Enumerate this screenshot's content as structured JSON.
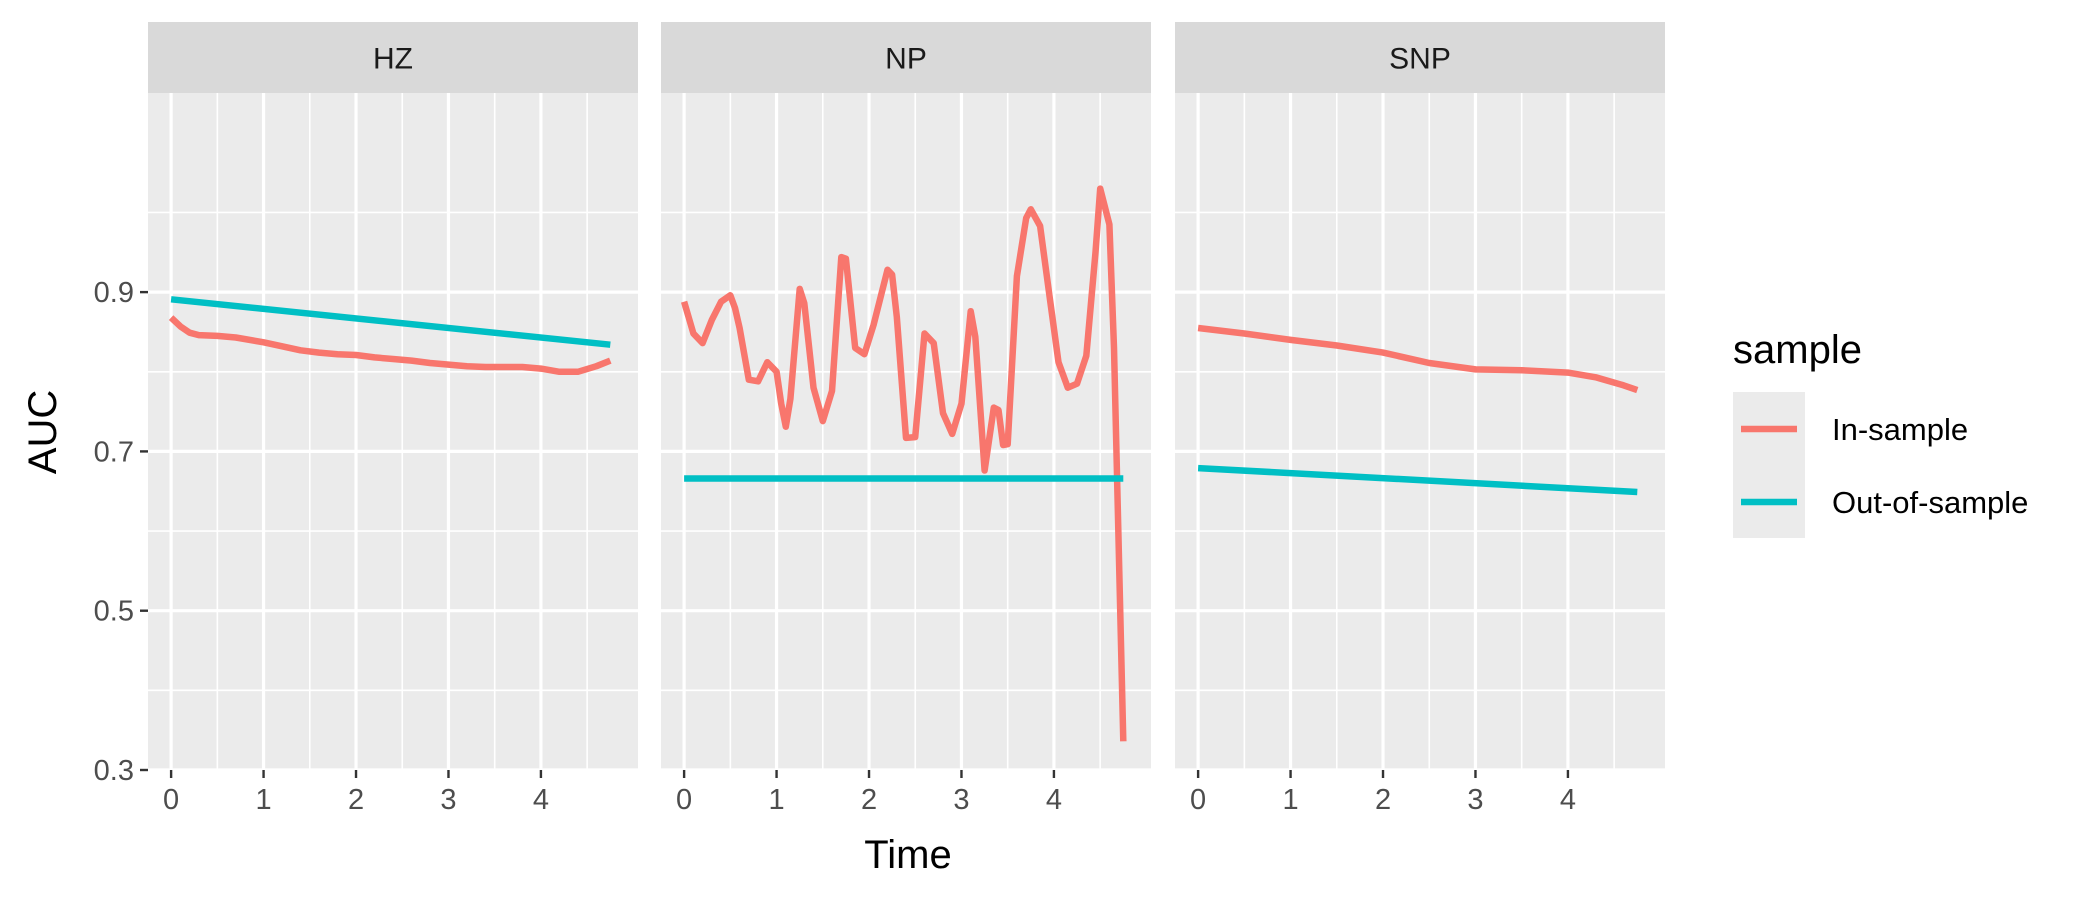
{
  "chart_data": {
    "type": "line",
    "facet_variable": "",
    "xlabel": "Time",
    "ylabel": "AUC",
    "x_ticks": [
      0,
      1,
      2,
      3,
      4
    ],
    "y_ticks": [
      0.3,
      0.5,
      0.7,
      0.9
    ],
    "y_tick_labels": [
      "0.3",
      "0.5",
      "0.7",
      "0.9"
    ],
    "xlim": [
      -0.25,
      5.05
    ],
    "ylim": [
      0.3,
      1.15
    ],
    "grid": true,
    "legend": {
      "title": "sample",
      "position": "right",
      "entries": [
        {
          "label": "In-sample",
          "color": "#F8766D"
        },
        {
          "label": "Out-of-sample",
          "color": "#00BFC4"
        }
      ]
    },
    "panels": [
      {
        "strip": "HZ",
        "series": [
          {
            "name": "In-sample",
            "color": "#F8766D",
            "x": [
              0,
              0.1,
              0.2,
              0.3,
              0.5,
              0.7,
              1.0,
              1.2,
              1.4,
              1.6,
              1.8,
              2.0,
              2.2,
              2.4,
              2.6,
              2.8,
              3.0,
              3.2,
              3.4,
              3.6,
              3.8,
              4.0,
              4.2,
              4.4,
              4.6,
              4.75
            ],
            "y": [
              0.868,
              0.857,
              0.849,
              0.846,
              0.845,
              0.843,
              0.837,
              0.832,
              0.827,
              0.824,
              0.822,
              0.821,
              0.818,
              0.816,
              0.814,
              0.811,
              0.809,
              0.807,
              0.806,
              0.806,
              0.806,
              0.804,
              0.8,
              0.8,
              0.807,
              0.814
            ]
          },
          {
            "name": "Out-of-sample",
            "color": "#00BFC4",
            "x": [
              0,
              4.75
            ],
            "y": [
              0.891,
              0.834
            ]
          }
        ]
      },
      {
        "strip": "NP",
        "series": [
          {
            "name": "In-sample",
            "color": "#F8766D",
            "x": [
              0,
              0.1,
              0.2,
              0.3,
              0.4,
              0.5,
              0.55,
              0.6,
              0.7,
              0.8,
              0.9,
              1.0,
              1.05,
              1.1,
              1.15,
              1.25,
              1.3,
              1.4,
              1.5,
              1.6,
              1.7,
              1.75,
              1.85,
              1.95,
              2.05,
              2.2,
              2.25,
              2.3,
              2.4,
              2.5,
              2.6,
              2.7,
              2.8,
              2.9,
              3.0,
              3.1,
              3.15,
              3.25,
              3.35,
              3.4,
              3.45,
              3.5,
              3.6,
              3.7,
              3.75,
              3.85,
              3.95,
              4.05,
              4.15,
              4.25,
              4.35,
              4.45,
              4.5,
              4.6,
              4.65,
              4.75
            ],
            "y": [
              0.888,
              0.848,
              0.836,
              0.865,
              0.888,
              0.896,
              0.88,
              0.855,
              0.79,
              0.788,
              0.812,
              0.8,
              0.76,
              0.731,
              0.766,
              0.904,
              0.886,
              0.78,
              0.738,
              0.776,
              0.944,
              0.942,
              0.83,
              0.822,
              0.859,
              0.928,
              0.922,
              0.869,
              0.717,
              0.718,
              0.848,
              0.836,
              0.748,
              0.722,
              0.76,
              0.876,
              0.844,
              0.676,
              0.755,
              0.752,
              0.708,
              0.709,
              0.92,
              0.993,
              1.004,
              0.983,
              0.897,
              0.812,
              0.78,
              0.785,
              0.82,
              0.95,
              1.03,
              0.985,
              0.83,
              0.336
            ]
          },
          {
            "name": "Out-of-sample",
            "color": "#00BFC4",
            "x": [
              0,
              4.75
            ],
            "y": [
              0.666,
              0.666
            ]
          }
        ]
      },
      {
        "strip": "SNP",
        "series": [
          {
            "name": "In-sample",
            "color": "#F8766D",
            "x": [
              0,
              0.5,
              1.0,
              1.5,
              2.0,
              2.5,
              3.0,
              3.5,
              4.0,
              4.3,
              4.6,
              4.75
            ],
            "y": [
              0.855,
              0.848,
              0.84,
              0.833,
              0.824,
              0.811,
              0.803,
              0.802,
              0.799,
              0.793,
              0.783,
              0.777
            ]
          },
          {
            "name": "Out-of-sample",
            "color": "#00BFC4",
            "x": [
              0,
              4.75
            ],
            "y": [
              0.679,
              0.649
            ]
          }
        ]
      }
    ]
  }
}
